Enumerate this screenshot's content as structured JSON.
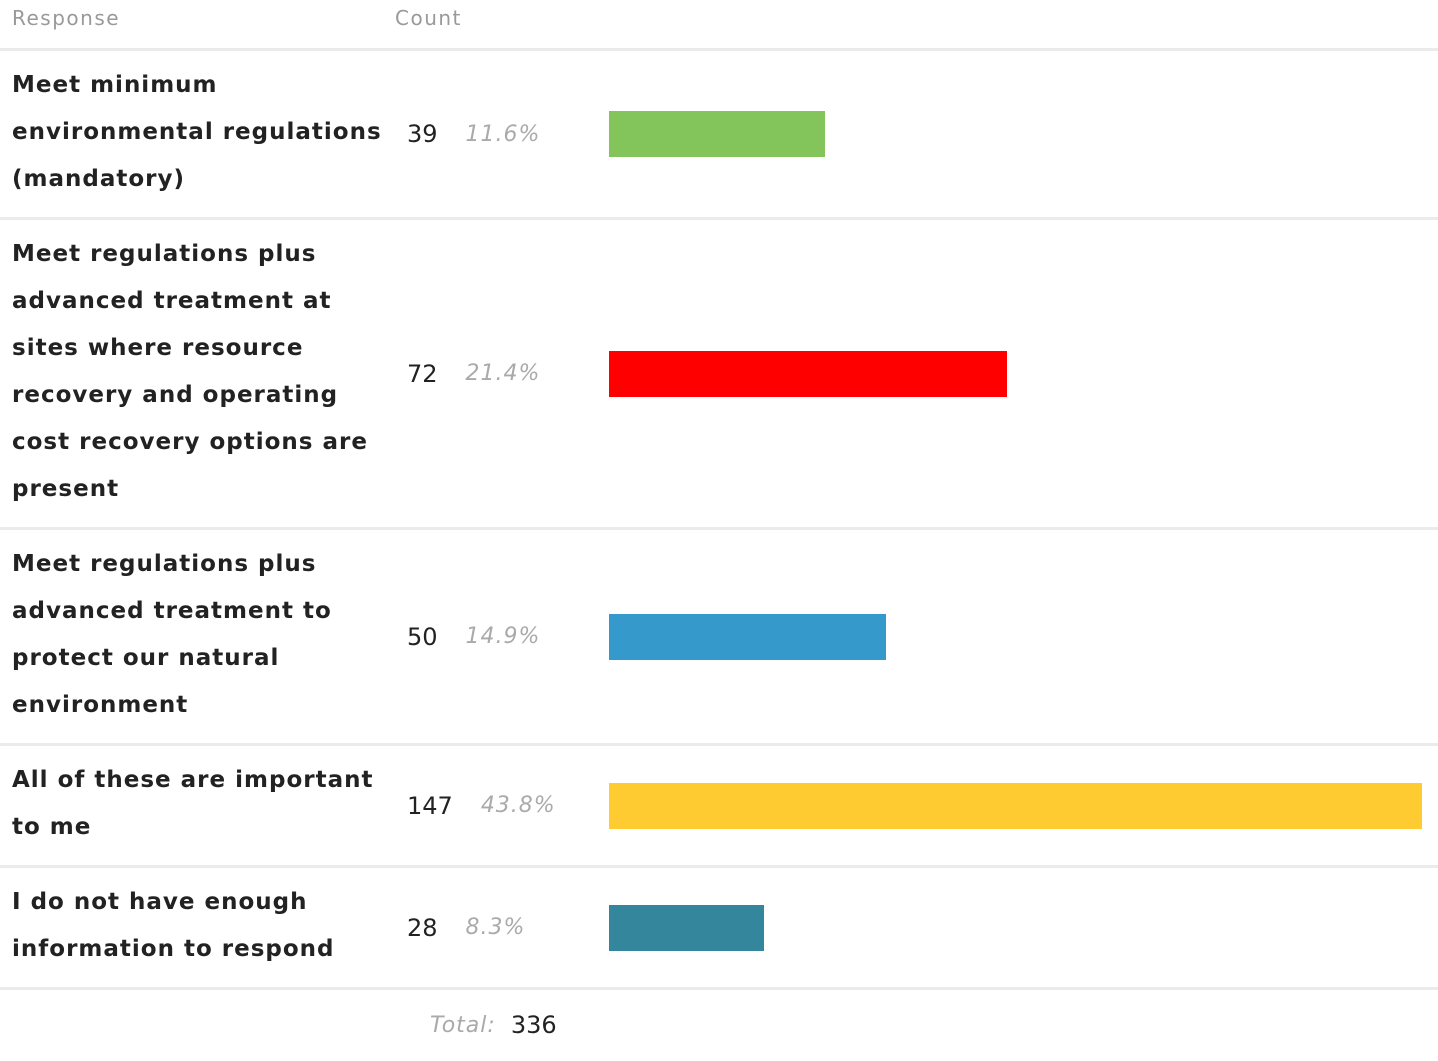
{
  "chart_data": {
    "type": "bar",
    "headers": [
      "Response",
      "Count"
    ],
    "categories": [
      "Meet minimum environmental regulations (mandatory)",
      "Meet regulations plus advanced treatment at sites where resource recovery and operating cost recovery options are present",
      "Meet regulations plus advanced treatment to protect our natural environment",
      "All of these are important to me",
      "I do not have enough information to respond"
    ],
    "values": [
      39,
      72,
      50,
      147,
      28
    ],
    "percent_labels": [
      "11.6%",
      "21.4%",
      "14.9%",
      "43.8%",
      "8.3%"
    ],
    "colors": [
      "#84c55b",
      "#ff0000",
      "#3699cc",
      "#fecb30",
      "#33869b"
    ],
    "total_label": "Total:",
    "total": 336
  }
}
